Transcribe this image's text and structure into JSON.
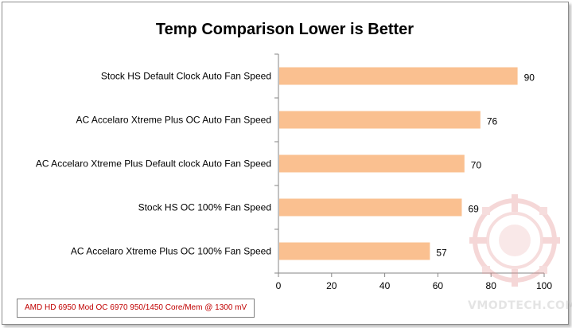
{
  "chart_data": {
    "type": "bar",
    "orientation": "horizontal",
    "title": "Temp Comparison  Lower is Better",
    "categories": [
      "Stock HS Default Clock Auto Fan Speed",
      "AC Accelaro Xtreme Plus OC Auto Fan Speed",
      "AC Accelaro Xtreme Plus Default clock Auto Fan Speed",
      "Stock HS OC 100% Fan Speed",
      "AC Accelaro Xtreme Plus OC 100% Fan Speed"
    ],
    "values": [
      90,
      76,
      70,
      69,
      57
    ],
    "xlim": [
      0,
      100
    ],
    "xticks": [
      0,
      20,
      40,
      60,
      80,
      100
    ],
    "xlabel": "",
    "ylabel": "",
    "grid": false,
    "legend": "none",
    "bar_color": "#fac090",
    "axis_color": "#868686"
  },
  "footnote": "AMD HD 6950 Mod OC 6970 950/1450 Core/Mem @ 1300 mV",
  "watermark": {
    "text": "VMODTECH.COM",
    "icon": "vmodtech-logo-icon"
  }
}
